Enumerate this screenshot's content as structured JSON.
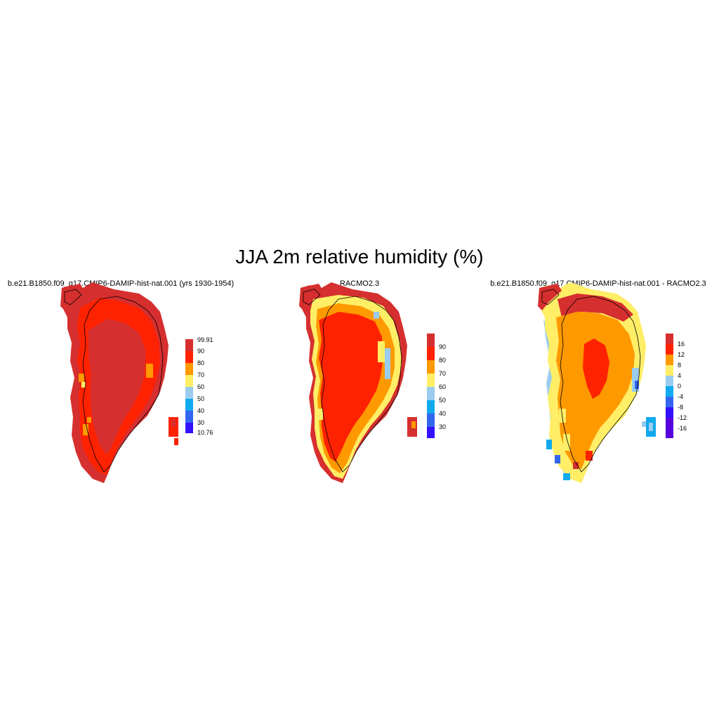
{
  "title": "JJA 2m relative humidity (%)",
  "colors": {
    "c_dark_red": "#d62f2f",
    "c_red": "#ff2200",
    "c_orange": "#ff9900",
    "c_yellow": "#ffee66",
    "c_light_blue": "#99ccee",
    "c_sky_blue": "#11aaee",
    "c_mid_blue": "#3366ee",
    "c_violet": "#3311ff"
  },
  "panels": [
    {
      "title": "b.e21.B1850.f09_g17.CMIP6-DAMIP-hist-nat.001 (yrs 1930-1954)",
      "colorbar": {
        "labels": [
          "99.91",
          "90",
          "80",
          "70",
          "60",
          "50",
          "40",
          "30",
          "10.76"
        ],
        "colors": [
          "#d62f2f",
          "#ff2200",
          "#ff9900",
          "#ffee66",
          "#99ccee",
          "#11aaee",
          "#3366ee",
          "#3311ff"
        ]
      }
    },
    {
      "title": "RACMO2.3",
      "colorbar": {
        "labels": [
          "90",
          "80",
          "70",
          "60",
          "50",
          "40",
          "30"
        ],
        "colors": [
          "#d62f2f",
          "#ff2200",
          "#ff9900",
          "#ffee66",
          "#99ccee",
          "#11aaee",
          "#3366ee",
          "#3311ff"
        ]
      }
    },
    {
      "title": "b.e21.B1850.f09_g17.CMIP6-DAMIP-hist-nat.001 - RACMO2.3",
      "colorbar": {
        "labels": [
          "16",
          "12",
          "8",
          "4",
          "0",
          "-4",
          "-8",
          "-12",
          "-16"
        ],
        "colors": [
          "#d62f2f",
          "#ff2200",
          "#ff9900",
          "#ffee66",
          "#99ccee",
          "#11aaee",
          "#3366ee",
          "#3311ff",
          "#5500dd"
        ]
      }
    }
  ]
}
